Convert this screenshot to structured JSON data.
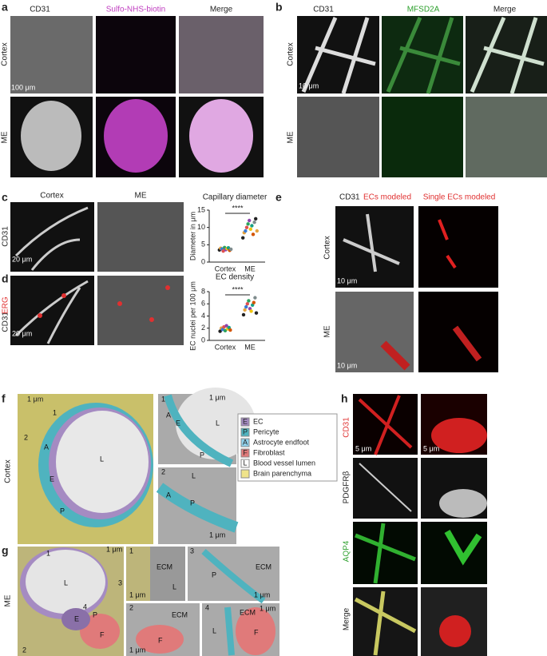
{
  "a": {
    "label": "a",
    "columns": [
      "CD31",
      "Sulfo-NHS-biotin",
      "Merge"
    ],
    "rows": [
      "Cortex",
      "ME"
    ],
    "scale_bar": "100 μm"
  },
  "b": {
    "label": "b",
    "columns": [
      "CD31",
      "MFSD2A",
      "Merge"
    ],
    "rows": [
      "Cortex",
      "ME"
    ],
    "scale_bar": "10 μm"
  },
  "c": {
    "label": "c",
    "columns": [
      "Cortex",
      "ME"
    ],
    "row": "CD31",
    "scale_bar": "20 μm",
    "plot": {
      "title": "Capillary diameter",
      "ylabel": "Diameter in μm",
      "categories": [
        "Cortex",
        "ME"
      ],
      "ylim": [
        0,
        15
      ],
      "yticks": [
        0,
        5,
        10,
        15
      ],
      "significance": "****",
      "values": [
        [
          3.5,
          4.0,
          3.8,
          3.2,
          4.2,
          3.6,
          3.9,
          4.1,
          3.4,
          3.7
        ],
        [
          7,
          8.5,
          9,
          10,
          11,
          12,
          9.5,
          10.5,
          8,
          11.5,
          12.5,
          9
        ]
      ]
    }
  },
  "d": {
    "label": "d",
    "row": [
      "CD31",
      "ERG"
    ],
    "scale_bar": "20 μm",
    "plot": {
      "title": "EC density",
      "ylabel": "EC nuclei per 100 μm",
      "categories": [
        "Cortex",
        "ME"
      ],
      "ylim": [
        0,
        8
      ],
      "yticks": [
        0,
        2,
        4,
        6,
        8
      ],
      "significance": "****",
      "values": [
        [
          1.5,
          2.0,
          1.8,
          2.2,
          1.6,
          2.4,
          1.9,
          2.1,
          1.7
        ],
        [
          4.2,
          5.0,
          5.5,
          6.0,
          6.5,
          5.2,
          4.8,
          5.8,
          6.2,
          7.0,
          4.5
        ]
      ]
    }
  },
  "point_colors": [
    "#222222",
    "#e6a23c",
    "#3a7bd5",
    "#e05050",
    "#2ca25f",
    "#8e44ad",
    "#f1c40f",
    "#16a085",
    "#d35400",
    "#7f8c8d"
  ],
  "e": {
    "label": "e",
    "columns": [
      "CD31",
      "ECs modeled",
      "Single ECs modeled"
    ],
    "rows": [
      "Cortex",
      "ME"
    ],
    "scale_bars": [
      "10 μm",
      "10 μm"
    ]
  },
  "f": {
    "label": "f",
    "row": "Cortex",
    "scale_bars": [
      "1 μm",
      "1 μm",
      "1 μm"
    ],
    "main_labels": [
      "A",
      "E",
      "L",
      "P",
      "1",
      "2"
    ],
    "inset1_labels": [
      "1",
      "A",
      "E",
      "P",
      "L"
    ],
    "inset2_labels": [
      "2",
      "A",
      "P",
      "L"
    ],
    "legend": [
      {
        "key": "E",
        "text": "EC",
        "color": "#a58bc2"
      },
      {
        "key": "P",
        "text": "Pericyte",
        "color": "#4fb3bf"
      },
      {
        "key": "A",
        "text": "Astrocyte endfoot",
        "color": "#8fd0ea"
      },
      {
        "key": "F",
        "text": "Fibroblast",
        "color": "#e07a7a"
      },
      {
        "key": "L",
        "text": "Blood vessel lumen",
        "color": "#ffffff"
      },
      {
        "text": "Brain parenchyma",
        "color": "#efe38a"
      }
    ]
  },
  "g": {
    "label": "g",
    "row": "ME",
    "scale_bars": [
      "1 μm",
      "1 μm",
      "1 μm",
      "1 μm"
    ],
    "main_labels": [
      "L",
      "E",
      "P",
      "F",
      "1",
      "2",
      "3",
      "4"
    ],
    "inset_labels": [
      "1",
      "ECM",
      "L",
      "2",
      "ECM",
      "F",
      "3",
      "ECM",
      "P",
      "4",
      "ECM",
      "F",
      "L"
    ]
  },
  "h": {
    "label": "h",
    "rows": [
      "CD31",
      "PDGFRβ",
      "AQP4",
      "Merge"
    ],
    "scale_bars": [
      "5 μm",
      "5 μm"
    ]
  }
}
